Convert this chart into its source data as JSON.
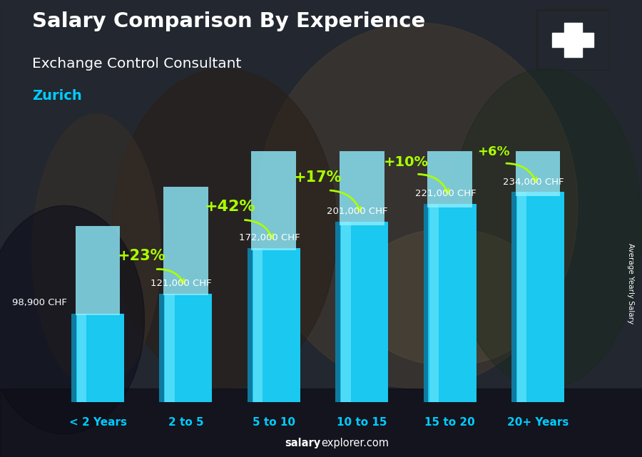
{
  "title": "Salary Comparison By Experience",
  "subtitle": "Exchange Control Consultant",
  "city": "Zurich",
  "ylabel": "Average Yearly Salary",
  "categories": [
    "< 2 Years",
    "2 to 5",
    "5 to 10",
    "10 to 15",
    "15 to 20",
    "20+ Years"
  ],
  "values": [
    98900,
    121000,
    172000,
    201000,
    221000,
    234000
  ],
  "value_labels": [
    "98,900 CHF",
    "121,000 CHF",
    "172,000 CHF",
    "201,000 CHF",
    "221,000 CHF",
    "234,000 CHF"
  ],
  "pct_changes": [
    "",
    "+23%",
    "+42%",
    "+17%",
    "+10%",
    "+6%"
  ],
  "bar_color_main": "#1ac8f0",
  "bar_color_left": "#0e7aa0",
  "bar_color_light": "#70e8ff",
  "bar_color_top": "#90eeff",
  "bg_color": "#2a2a2a",
  "title_color": "#ffffff",
  "subtitle_color": "#ffffff",
  "city_color": "#00ccff",
  "value_label_color": "#ffffff",
  "pct_color": "#aaff00",
  "footer_bold_color": "#ffffff",
  "flag_bg": "#e8122c",
  "ylim": [
    0,
    280000
  ],
  "bar_width": 0.6,
  "pct_fontsize": [
    14,
    16,
    14,
    14,
    13,
    12
  ],
  "val_fontsize": 9.5,
  "cat_fontsize": 11
}
